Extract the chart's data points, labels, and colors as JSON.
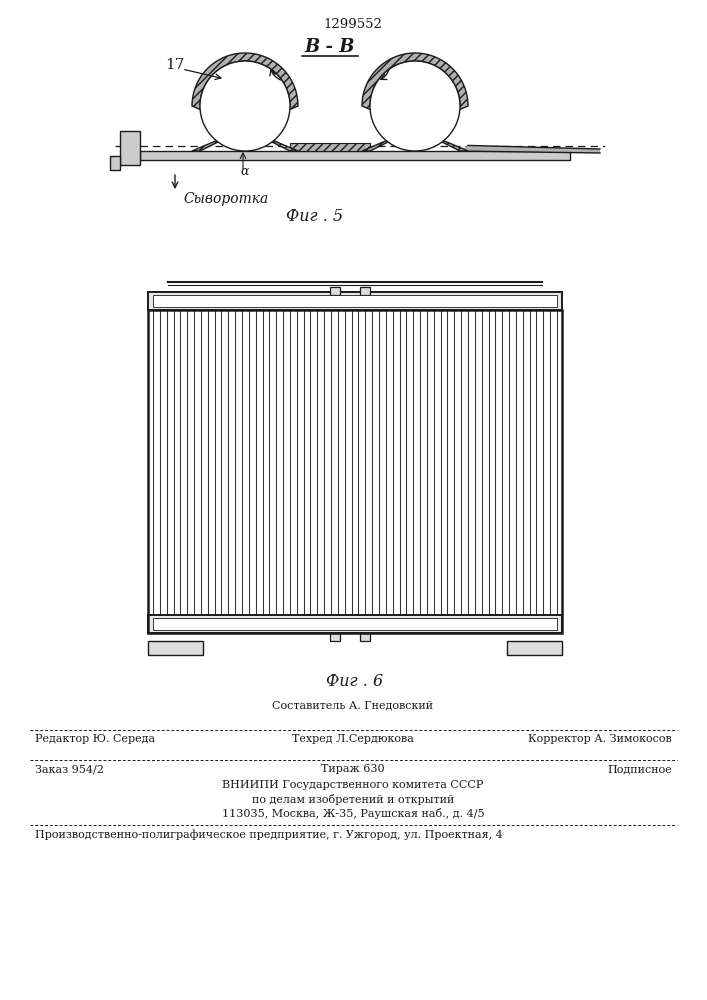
{
  "patent_number": "1299552",
  "fig5_label": "Фиг . 5",
  "fig6_label": "Фиг . 6",
  "section_label": "В - В",
  "label_17": "17",
  "label_a": "α",
  "label_syvorotka": "Сыворотка",
  "footer_line1_col2_top": "Составитель А. Гнедовский",
  "footer_line1_col1": "Редактор Ю. Середа",
  "footer_line1_col2b": "Техред Л.Сердюкова",
  "footer_line1_col3": "Корректор А. Зимокосов",
  "footer_line2_col1": "Заказ 954/2",
  "footer_line2_col2": "Тираж 630",
  "footer_line2_col3": "Подписное",
  "footer_vniip1": "ВНИИПИ Государственного комитета СССР",
  "footer_vniip2": "по делам изобретений и открытий",
  "footer_vniip3": "113035, Москва, Ж-35, Раушская наб., д. 4/5",
  "footer_bottom": "Производственно-полиграфическое предприятие, г. Ужгород, ул. Проектная, 4",
  "bg_color": "#ffffff",
  "line_color": "#1a1a1a"
}
